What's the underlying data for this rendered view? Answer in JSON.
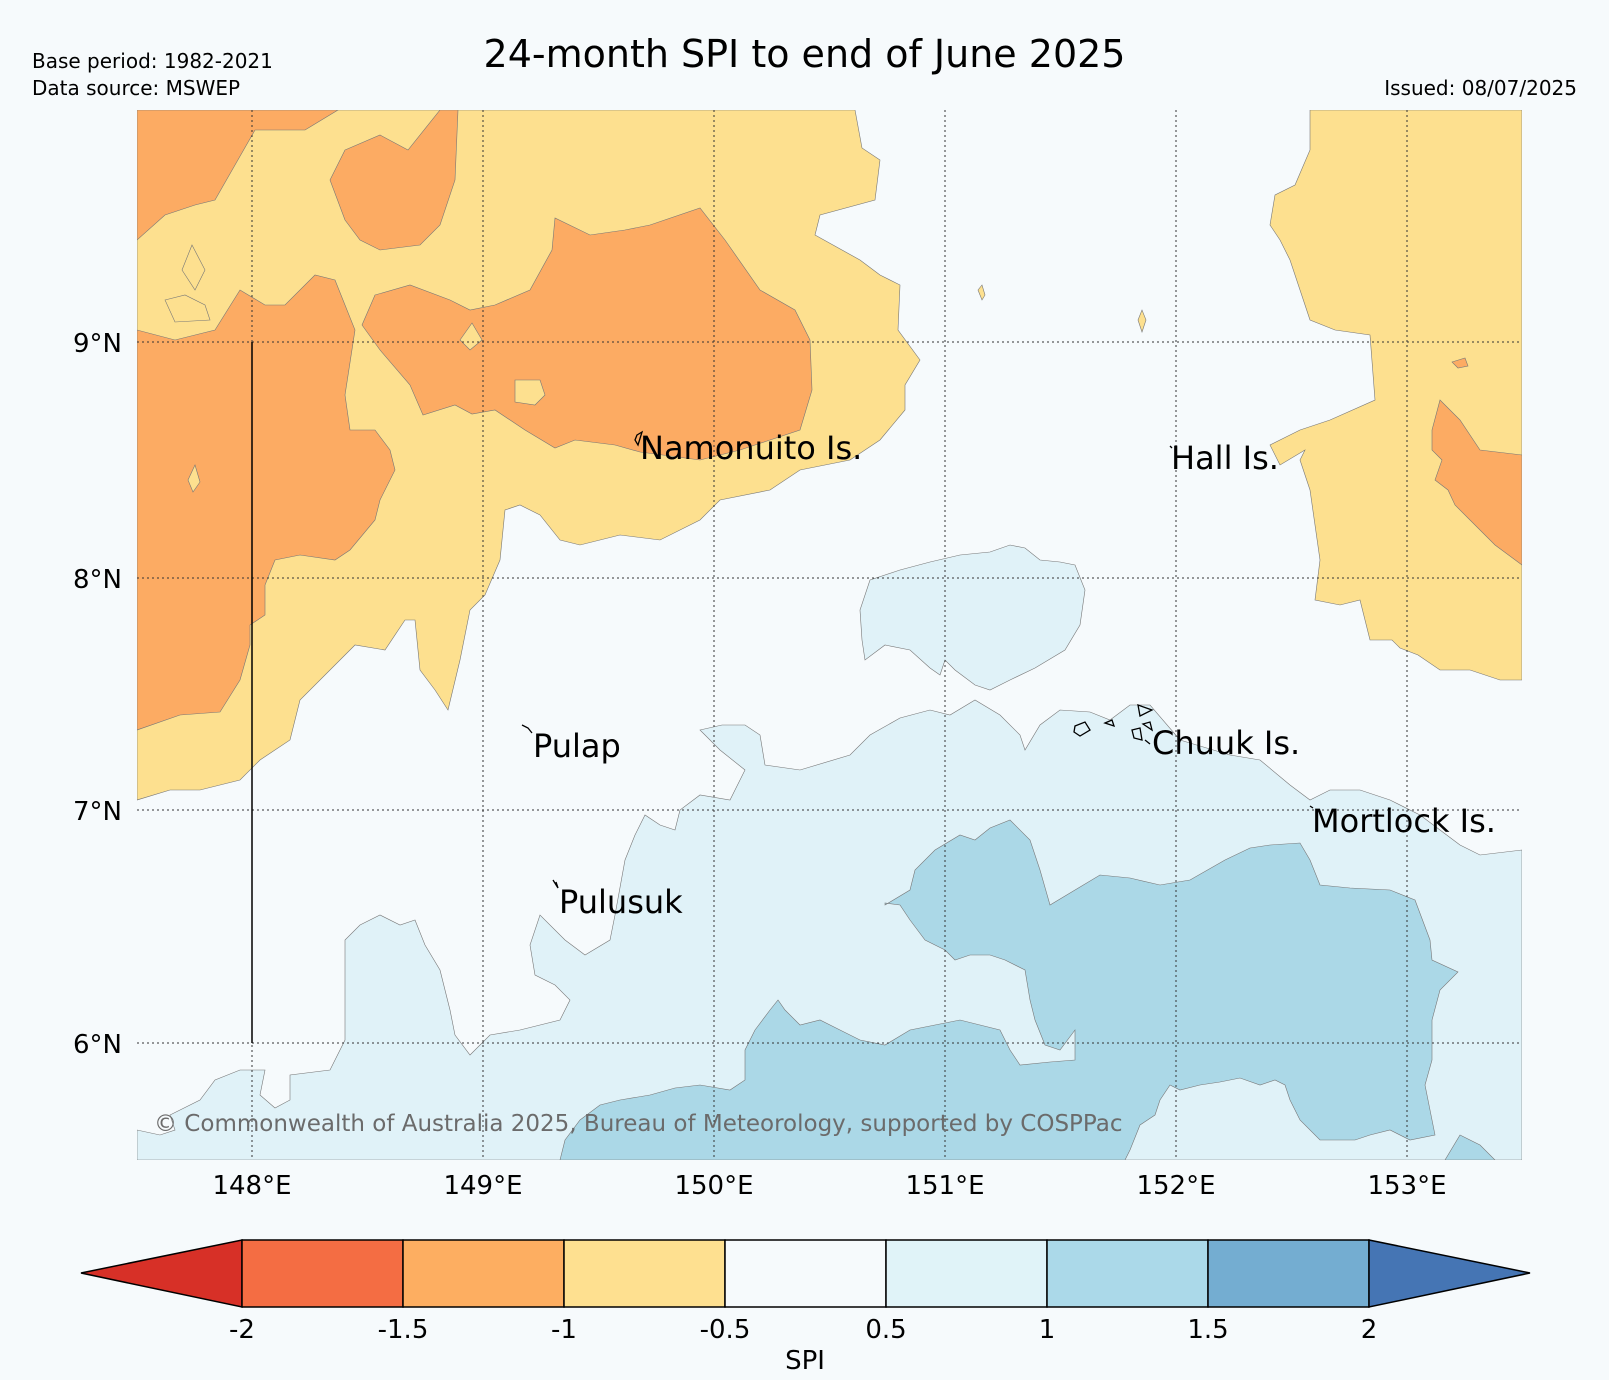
{
  "header": {
    "title": "24-month SPI to end of June 2025",
    "base_period": "Base period: 1982-2021",
    "data_source": "Data source: MSWEP",
    "issued": "Issued: 08/07/2025"
  },
  "map": {
    "lat_labels": [
      "9°N",
      "8°N",
      "7°N",
      "6°N"
    ],
    "lon_labels": [
      "148°E",
      "149°E",
      "150°E",
      "151°E",
      "152°E",
      "153°E"
    ],
    "places": [
      "Namonuito Is.",
      "Hall Is.",
      "Pulap",
      "Chuuk Is.",
      "Mortlock Is.",
      "Pulusuk"
    ],
    "copyright": "© Commonwealth of Australia 2025, Bureau of Meteorology, supported by COSPPac",
    "region_colors": {
      "spi_-1.5_to_-1": "#fcab63",
      "spi_-1_to_-0.5": "#fde08f",
      "spi_-0.5_to_0.5": "#f6fafc",
      "spi_0.5_to_1": "#e0f2f8",
      "spi_1_to_1.5": "#abd8e7"
    }
  },
  "colorbar": {
    "label": "SPI",
    "ticks": [
      "-2",
      "-1.5",
      "-1",
      "-0.5",
      "0.5",
      "1",
      "1.5",
      "2"
    ],
    "colors": [
      "#d73027",
      "#f46d43",
      "#fdae61",
      "#fee090",
      "#f6fafc",
      "#e0f3f8",
      "#abd9e9",
      "#74add1",
      "#4575b4"
    ]
  }
}
